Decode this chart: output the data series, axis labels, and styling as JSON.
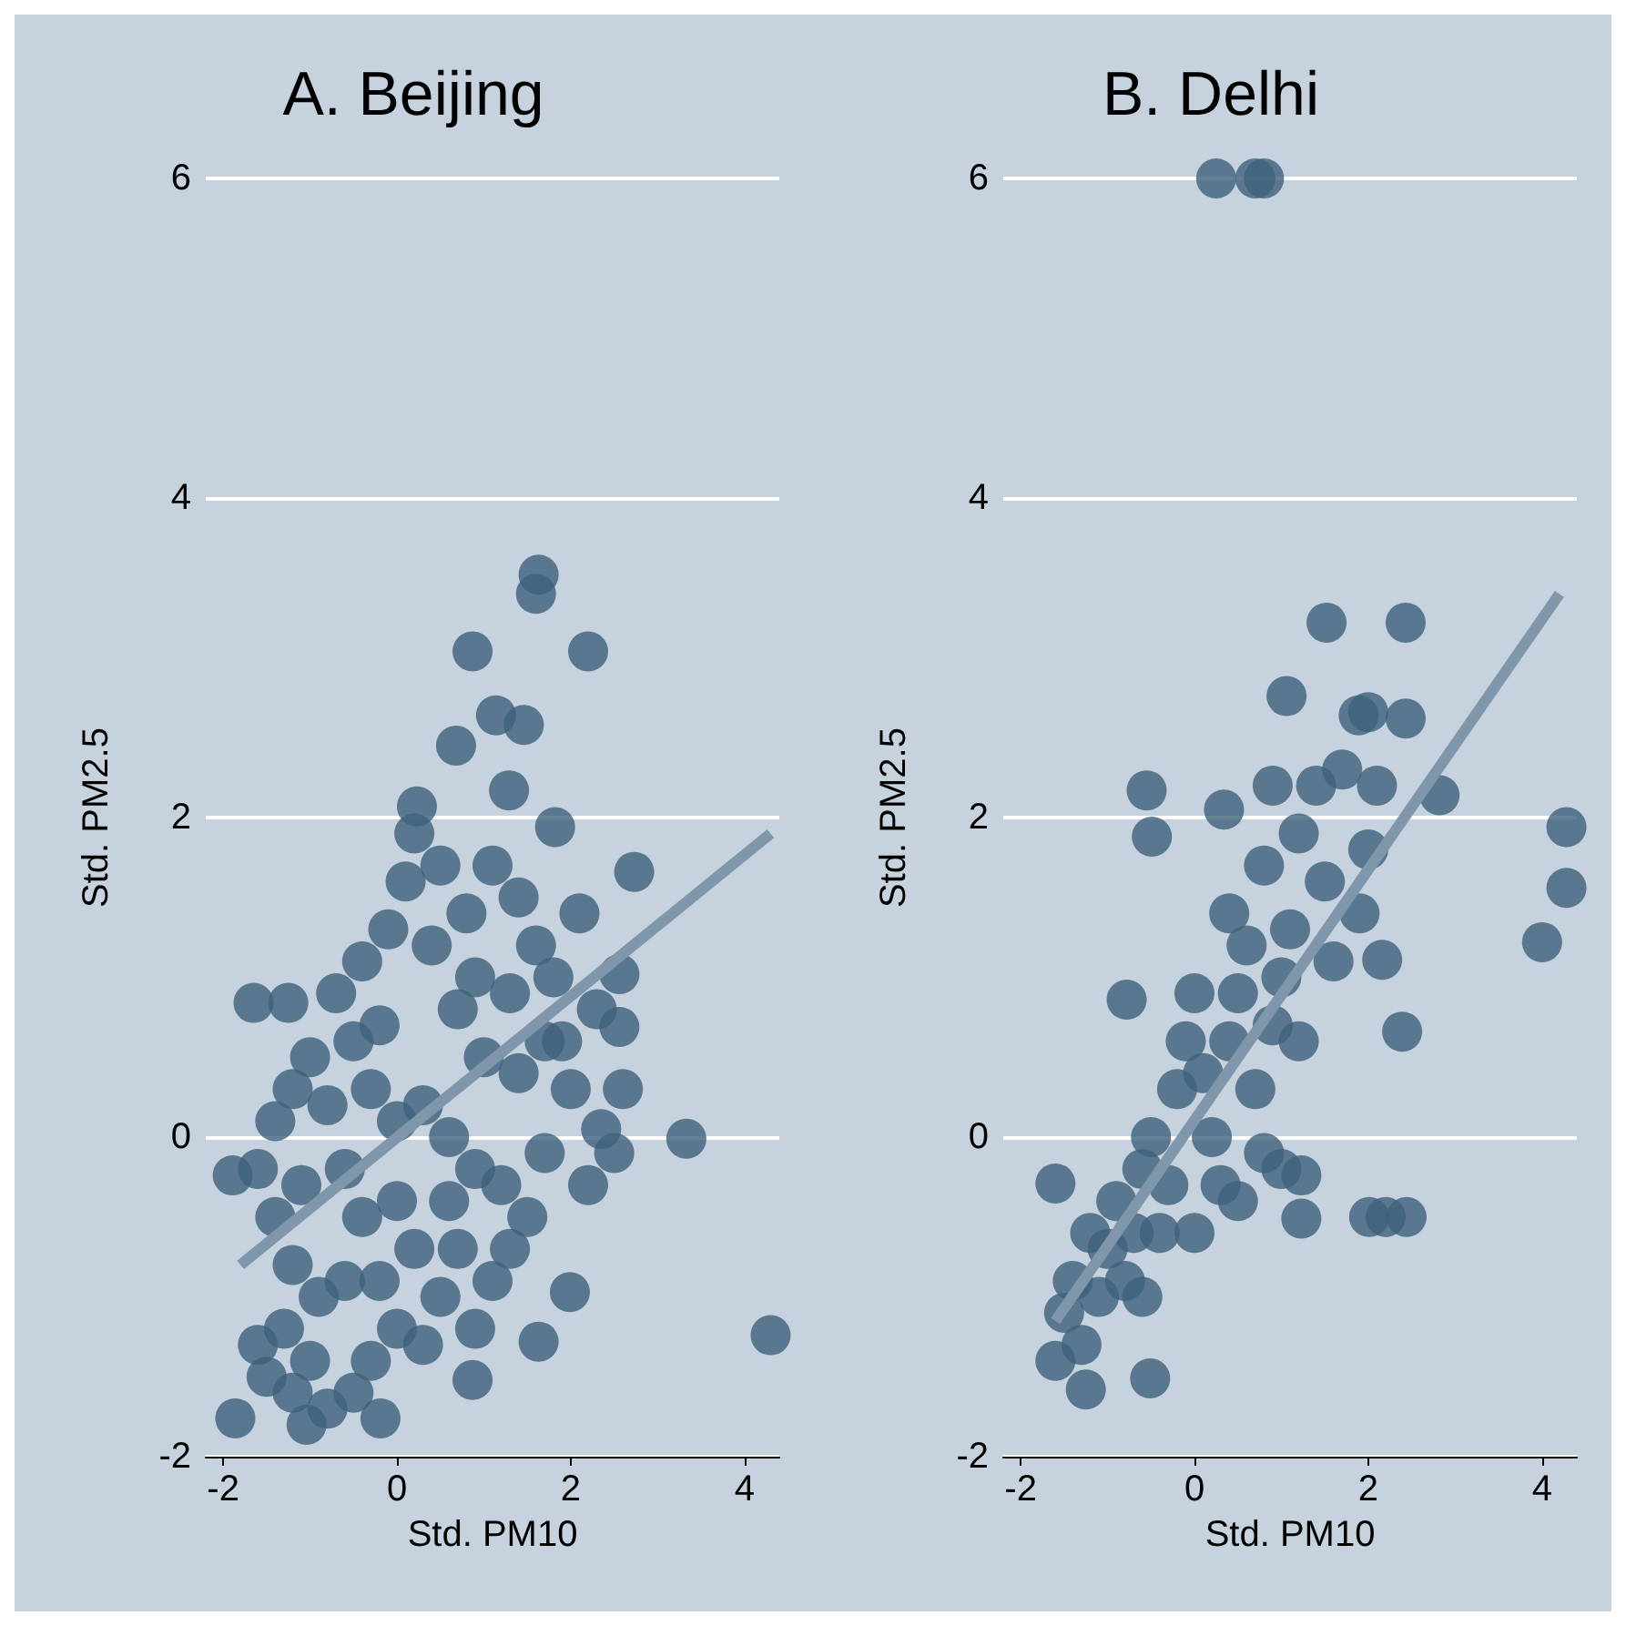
{
  "chart_data": [
    {
      "type": "scatter",
      "title": "A. Beijing",
      "xlabel": "Std. PM10",
      "ylabel": "Std. PM2.5",
      "xlim": [
        -2.2,
        4.4
      ],
      "ylim": [
        -2,
        6
      ],
      "xticks": [
        -2,
        0,
        2,
        4
      ],
      "yticks": [
        -2,
        0,
        2,
        4,
        6
      ],
      "grid": "y",
      "series": [
        {
          "marker": "circle",
          "color": "#3d6079",
          "x": [
            1.63,
            1.6,
            0.87,
            2.2,
            1.14,
            1.46,
            0.68,
            1.29,
            0.23,
            1.82,
            2.73,
            3.33,
            4.3,
            1.99,
            1.63,
            -1.65,
            -1.25,
            -1.89,
            -1.86,
            -1.04,
            -0.19,
            0.87,
            2.56,
            2.56,
            2.35,
            -1.5,
            -1.3,
            -1.6,
            -1.2,
            -1.0,
            -0.8,
            -0.5,
            -0.3,
            -0.9,
            -1.2,
            -1.4,
            -1.6,
            -1.4,
            -1.2,
            -1.0,
            -0.8,
            -0.6,
            -0.4,
            -0.2,
            0.0,
            0.3,
            0.5,
            0.7,
            0.9,
            1.1,
            1.3,
            1.5,
            1.2,
            0.9,
            0.6,
            0.3,
            0.0,
            -0.3,
            -0.5,
            -0.7,
            -0.4,
            -0.1,
            0.1,
            0.2,
            0.5,
            0.8,
            1.1,
            1.4,
            1.6,
            1.8,
            1.9,
            2.0,
            1.7,
            2.2,
            2.5,
            2.6,
            2.3,
            2.1,
            1.3,
            1.0,
            0.7,
            0.4,
            -0.2,
            0.0,
            -0.6,
            -1.1,
            0.2,
            0.6,
            1.4,
            1.7,
            0.9
          ],
          "values": [
            3.52,
            3.4,
            3.04,
            3.04,
            2.64,
            2.58,
            2.45,
            2.17,
            2.07,
            1.94,
            1.66,
            -0.01,
            -1.24,
            -0.97,
            -1.28,
            0.84,
            0.84,
            -0.24,
            -1.76,
            -1.8,
            -1.76,
            -1.52,
            0.69,
            1.02,
            0.05,
            -1.5,
            -1.2,
            -1.3,
            -1.6,
            -1.4,
            -1.7,
            -1.6,
            -1.4,
            -1.0,
            -0.8,
            -0.5,
            -0.2,
            0.1,
            0.3,
            0.5,
            0.2,
            -0.2,
            -0.5,
            -0.9,
            -1.2,
            -1.3,
            -1.0,
            -0.7,
            -1.2,
            -0.9,
            -0.7,
            -0.5,
            -0.3,
            -0.2,
            0.0,
            0.2,
            0.1,
            0.3,
            0.6,
            0.9,
            1.1,
            1.3,
            1.6,
            1.9,
            1.7,
            1.4,
            1.7,
            1.5,
            1.2,
            1.0,
            0.6,
            0.3,
            -0.1,
            -0.3,
            -0.1,
            0.3,
            0.8,
            1.4,
            0.9,
            0.5,
            0.8,
            1.2,
            0.7,
            -0.4,
            -0.9,
            -0.3,
            -0.7,
            -0.4,
            0.4,
            0.6,
            1.0
          ]
        },
        {
          "type": "line",
          "marker": "none",
          "color": "#7f96ab",
          "x": [
            -1.8,
            4.3
          ],
          "values": [
            -0.8,
            1.9
          ]
        }
      ]
    },
    {
      "type": "scatter",
      "title": "B. Delhi",
      "xlabel": "Std. PM10",
      "ylabel": "Std. PM2.5",
      "xlim": [
        -2.2,
        4.4
      ],
      "ylim": [
        -2,
        6
      ],
      "xticks": [
        -2,
        0,
        2,
        4
      ],
      "yticks": [
        -2,
        0,
        2,
        4,
        6
      ],
      "grid": "y",
      "series": [
        {
          "marker": "circle",
          "color": "#3d6079",
          "x": [
            0.25,
            0.7,
            0.8,
            1.52,
            2.43,
            1.06,
            1.89,
            2.0,
            2.43,
            -0.55,
            -0.49,
            4.28,
            4.28,
            4.0,
            2.39,
            2.01,
            2.2,
            2.44,
            -1.6,
            -0.51,
            -1.25,
            -0.78,
            2.82,
            0.34,
            1.23,
            1.23,
            2.16,
            -1.6,
            -1.5,
            -1.4,
            -1.3,
            -1.1,
            -1.0,
            -0.9,
            -0.8,
            -0.7,
            -0.6,
            -0.5,
            -0.4,
            -0.3,
            -0.2,
            -0.1,
            0.0,
            0.1,
            0.2,
            0.3,
            0.4,
            0.5,
            0.6,
            0.7,
            0.8,
            0.9,
            1.0,
            1.1,
            1.2,
            0.4,
            0.8,
            1.2,
            1.5,
            1.4,
            1.7,
            0.9,
            1.9,
            2.0,
            2.1,
            1.6,
            -1.2,
            -0.6,
            0.0,
            0.5,
            1.0
          ],
          "values": [
            6,
            6,
            6,
            3.22,
            3.22,
            2.76,
            2.64,
            2.66,
            2.62,
            2.17,
            1.88,
            1.94,
            1.56,
            1.22,
            0.66,
            -0.5,
            -0.5,
            -0.5,
            -0.29,
            -1.51,
            -1.58,
            0.86,
            2.14,
            2.05,
            -0.24,
            -0.51,
            1.11,
            -1.4,
            -1.1,
            -0.9,
            -1.3,
            -1.0,
            -0.7,
            -0.4,
            -0.9,
            -0.6,
            -0.2,
            0.0,
            -0.6,
            -0.3,
            0.3,
            0.6,
            0.9,
            0.4,
            0.0,
            -0.3,
            0.6,
            0.9,
            1.2,
            0.3,
            -0.1,
            0.7,
            1.0,
            1.3,
            0.6,
            1.4,
            1.7,
            1.9,
            1.6,
            2.2,
            2.3,
            2.2,
            1.4,
            1.8,
            2.2,
            1.1,
            -0.6,
            -1.0,
            -0.6,
            -0.4,
            -0.2
          ]
        },
        {
          "type": "line",
          "marker": "none",
          "color": "#7f96ab",
          "x": [
            -1.6,
            4.2
          ],
          "values": [
            -1.15,
            3.4
          ]
        }
      ]
    }
  ]
}
